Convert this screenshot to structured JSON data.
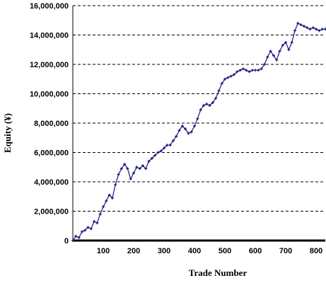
{
  "chart_data": {
    "type": "line",
    "title": "",
    "xlabel": "Trade Number",
    "ylabel": "Equity (¥)",
    "xlim": [
      0,
      830
    ],
    "ylim": [
      0,
      16000000
    ],
    "x_ticks": [
      100,
      200,
      300,
      400,
      500,
      600,
      700,
      800
    ],
    "x_tick_labels": [
      "100",
      "200",
      "300",
      "400",
      "500",
      "600",
      "700",
      "800"
    ],
    "y_ticks": [
      0,
      2000000,
      4000000,
      6000000,
      8000000,
      10000000,
      12000000,
      14000000,
      16000000
    ],
    "y_tick_labels": [
      "0",
      "2,000,000",
      "4,000,000",
      "6,000,000",
      "8,000,000",
      "10,000,000",
      "12,000,000",
      "14,000,000",
      "16,000,000"
    ],
    "grid": {
      "horizontal": true,
      "style": "dashed"
    },
    "legend": "none",
    "colors": {
      "series": "#1a1a80",
      "grid": "#000000",
      "axis": "#000000"
    },
    "series": [
      {
        "x": [
          0,
          10,
          20,
          30,
          40,
          50,
          60,
          70,
          80,
          90,
          100,
          110,
          120,
          130,
          140,
          150,
          160,
          170,
          180,
          190,
          200,
          210,
          220,
          230,
          240,
          250,
          260,
          270,
          280,
          290,
          300,
          310,
          320,
          330,
          340,
          350,
          360,
          370,
          380,
          390,
          400,
          410,
          420,
          430,
          440,
          450,
          460,
          470,
          480,
          490,
          500,
          510,
          520,
          530,
          540,
          550,
          560,
          570,
          580,
          590,
          600,
          610,
          620,
          630,
          640,
          650,
          660,
          670,
          680,
          690,
          700,
          710,
          720,
          730,
          740,
          750,
          760,
          770,
          780,
          790,
          800,
          810,
          820,
          830
        ],
        "y": [
          0,
          300000,
          200000,
          600000,
          700000,
          900000,
          800000,
          1300000,
          1200000,
          1800000,
          2300000,
          2700000,
          3100000,
          2900000,
          3800000,
          4500000,
          4900000,
          5200000,
          4900000,
          4200000,
          4600000,
          5000000,
          4900000,
          5100000,
          4900000,
          5400000,
          5600000,
          5800000,
          6000000,
          6100000,
          6300000,
          6500000,
          6500000,
          6800000,
          7100000,
          7500000,
          7800000,
          7600000,
          7300000,
          7400000,
          7800000,
          8300000,
          8900000,
          9200000,
          9300000,
          9200000,
          9400000,
          9700000,
          10200000,
          10700000,
          11000000,
          11100000,
          11200000,
          11300000,
          11500000,
          11600000,
          11700000,
          11600000,
          11500000,
          11600000,
          11600000,
          11600000,
          11700000,
          12000000,
          12500000,
          12900000,
          12600000,
          12300000,
          12900000,
          13300000,
          13500000,
          13000000,
          13500000,
          14300000,
          14800000,
          14700000,
          14600000,
          14500000,
          14400000,
          14500000,
          14400000,
          14300000,
          14400000,
          14400000
        ]
      }
    ]
  }
}
